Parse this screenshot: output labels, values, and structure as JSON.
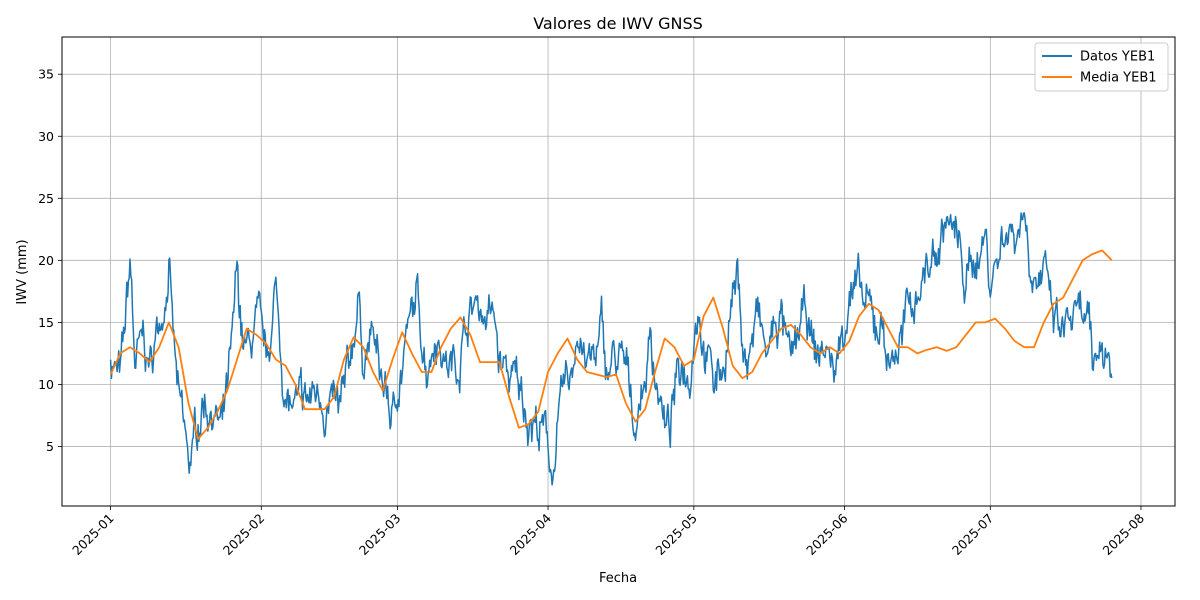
{
  "chart_data": {
    "type": "line",
    "title": "Valores de IWV GNSS",
    "xlabel": "Fecha",
    "ylabel": "IWV (mm)",
    "x_domain": [
      "2024-12-22",
      "2025-08-08"
    ],
    "ylim": [
      0.2,
      38
    ],
    "x_ticks": [
      "2025-01",
      "2025-02",
      "2025-03",
      "2025-04",
      "2025-05",
      "2025-06",
      "2025-07",
      "2025-08"
    ],
    "y_ticks": [
      5,
      10,
      15,
      20,
      25,
      30,
      35
    ],
    "grid": true,
    "legend_position": "top-right",
    "colors": {
      "data": "#1f77b4",
      "mean": "#ff7f0e"
    },
    "series": [
      {
        "name": "Datos YEB1",
        "x_start": "2025-01-01",
        "x_end": "2025-07-26",
        "anchors": [
          [
            "2025-01-01",
            12.5
          ],
          [
            "2025-01-03",
            10.0
          ],
          [
            "2025-01-04",
            14.0
          ],
          [
            "2025-01-05",
            19.5
          ],
          [
            "2025-01-06",
            11.5
          ],
          [
            "2025-01-08",
            13.0
          ],
          [
            "2025-01-09",
            11.0
          ],
          [
            "2025-01-11",
            15.0
          ],
          [
            "2025-01-12",
            17.5
          ],
          [
            "2025-01-13",
            20.0
          ],
          [
            "2025-01-14",
            13.0
          ],
          [
            "2025-01-15",
            8.0
          ],
          [
            "2025-01-16",
            6.0
          ],
          [
            "2025-01-17",
            3.0
          ],
          [
            "2025-01-18",
            4.5
          ],
          [
            "2025-01-20",
            9.0
          ],
          [
            "2025-01-22",
            8.5
          ],
          [
            "2025-01-24",
            6.0
          ],
          [
            "2025-01-26",
            12.0
          ],
          [
            "2025-01-27",
            18.0
          ],
          [
            "2025-01-28",
            14.0
          ],
          [
            "2025-01-29",
            12.0
          ],
          [
            "2025-01-31",
            14.5
          ],
          [
            "2025-02-02",
            11.0
          ],
          [
            "2025-02-04",
            17.5
          ],
          [
            "2025-02-05",
            13.0
          ],
          [
            "2025-02-06",
            9.0
          ],
          [
            "2025-02-07",
            8.0
          ],
          [
            "2025-02-09",
            7.5
          ],
          [
            "2025-02-11",
            8.5
          ],
          [
            "2025-02-13",
            9.5
          ],
          [
            "2025-02-15",
            8.5
          ],
          [
            "2025-02-17",
            7.0
          ],
          [
            "2025-02-19",
            10.0
          ],
          [
            "2025-02-20",
            14.0
          ],
          [
            "2025-02-21",
            17.0
          ],
          [
            "2025-02-22",
            12.5
          ],
          [
            "2025-02-24",
            14.0
          ],
          [
            "2025-02-25",
            11.0
          ],
          [
            "2025-02-27",
            9.0
          ],
          [
            "2025-02-28",
            6.5
          ],
          [
            "2025-03-01",
            10.0
          ],
          [
            "2025-03-03",
            14.0
          ],
          [
            "2025-03-04",
            15.0
          ],
          [
            "2025-03-05",
            16.5
          ],
          [
            "2025-03-07",
            12.0
          ],
          [
            "2025-03-09",
            15.0
          ],
          [
            "2025-03-11",
            12.0
          ],
          [
            "2025-03-13",
            11.5
          ],
          [
            "2025-03-15",
            15.0
          ],
          [
            "2025-03-17",
            16.5
          ],
          [
            "2025-03-19",
            16.0
          ],
          [
            "2025-03-21",
            15.0
          ],
          [
            "2025-03-22",
            11.5
          ],
          [
            "2025-03-25",
            10.0
          ],
          [
            "2025-03-28",
            8.0
          ],
          [
            "2025-03-31",
            6.0
          ],
          [
            "2025-04-01",
            5.0
          ],
          [
            "2025-04-02",
            3.0
          ],
          [
            "2025-04-03",
            6.5
          ],
          [
            "2025-04-05",
            9.5
          ],
          [
            "2025-04-06",
            10.5
          ],
          [
            "2025-04-07",
            15.0
          ],
          [
            "2025-04-08",
            14.0
          ],
          [
            "2025-04-09",
            11.5
          ],
          [
            "2025-04-11",
            12.0
          ],
          [
            "2025-04-12",
            14.0
          ],
          [
            "2025-04-13",
            11.0
          ],
          [
            "2025-04-15",
            12.0
          ],
          [
            "2025-04-17",
            10.5
          ],
          [
            "2025-04-18",
            9.0
          ],
          [
            "2025-04-19",
            7.0
          ],
          [
            "2025-04-21",
            11.0
          ],
          [
            "2025-04-22",
            13.5
          ],
          [
            "2025-04-24",
            9.5
          ],
          [
            "2025-04-25",
            6.5
          ],
          [
            "2025-04-26",
            6.0
          ],
          [
            "2025-04-27",
            9.0
          ],
          [
            "2025-04-29",
            12.0
          ],
          [
            "2025-04-30",
            11.0
          ],
          [
            "2025-05-01",
            15.0
          ],
          [
            "2025-05-02",
            17.5
          ],
          [
            "2025-05-03",
            14.0
          ],
          [
            "2025-05-04",
            12.5
          ],
          [
            "2025-05-05",
            10.0
          ],
          [
            "2025-05-07",
            11.5
          ],
          [
            "2025-05-09",
            17.5
          ],
          [
            "2025-05-10",
            18.5
          ],
          [
            "2025-05-11",
            14.0
          ],
          [
            "2025-05-12",
            11.5
          ],
          [
            "2025-05-14",
            15.5
          ],
          [
            "2025-05-16",
            12.0
          ],
          [
            "2025-05-18",
            15.0
          ],
          [
            "2025-05-19",
            15.5
          ],
          [
            "2025-05-21",
            10.5
          ],
          [
            "2025-05-22",
            13.0
          ],
          [
            "2025-05-24",
            15.5
          ],
          [
            "2025-05-26",
            12.0
          ],
          [
            "2025-05-28",
            13.0
          ],
          [
            "2025-05-30",
            11.0
          ],
          [
            "2025-05-31",
            13.0
          ],
          [
            "2025-06-01",
            15.0
          ],
          [
            "2025-06-02",
            18.5
          ],
          [
            "2025-06-04",
            17.0
          ],
          [
            "2025-06-05",
            16.0
          ],
          [
            "2025-06-07",
            14.5
          ],
          [
            "2025-06-09",
            15.0
          ],
          [
            "2025-06-10",
            12.0
          ],
          [
            "2025-06-11",
            12.5
          ],
          [
            "2025-06-13",
            14.0
          ],
          [
            "2025-06-15",
            16.5
          ],
          [
            "2025-06-17",
            19.0
          ],
          [
            "2025-06-19",
            20.0
          ],
          [
            "2025-06-20",
            20.5
          ],
          [
            "2025-06-22",
            23.5
          ],
          [
            "2025-06-24",
            21.5
          ],
          [
            "2025-06-26",
            18.0
          ],
          [
            "2025-06-28",
            20.5
          ],
          [
            "2025-06-30",
            22.0
          ],
          [
            "2025-07-01",
            18.5
          ],
          [
            "2025-07-03",
            21.0
          ],
          [
            "2025-07-04",
            23.0
          ],
          [
            "2025-07-06",
            22.5
          ],
          [
            "2025-07-08",
            24.5
          ],
          [
            "2025-07-09",
            21.0
          ],
          [
            "2025-07-11",
            19.0
          ],
          [
            "2025-07-12",
            18.5
          ],
          [
            "2025-07-14",
            15.0
          ],
          [
            "2025-07-16",
            13.5
          ],
          [
            "2025-07-17",
            15.5
          ],
          [
            "2025-07-19",
            14.5
          ],
          [
            "2025-07-21",
            15.0
          ],
          [
            "2025-07-22",
            10.0
          ],
          [
            "2025-07-24",
            14.0
          ],
          [
            "2025-07-26",
            11.0
          ]
        ]
      },
      {
        "name": "Media YEB1",
        "points": [
          [
            "2025-01-01",
            10.8
          ],
          [
            "2025-01-03",
            12.5
          ],
          [
            "2025-01-05",
            13.0
          ],
          [
            "2025-01-07",
            12.5
          ],
          [
            "2025-01-09",
            11.8
          ],
          [
            "2025-01-11",
            13.0
          ],
          [
            "2025-01-13",
            15.0
          ],
          [
            "2025-01-15",
            13.0
          ],
          [
            "2025-01-17",
            8.5
          ],
          [
            "2025-01-19",
            5.6
          ],
          [
            "2025-01-21",
            6.5
          ],
          [
            "2025-01-23",
            7.8
          ],
          [
            "2025-01-25",
            9.5
          ],
          [
            "2025-01-27",
            12.0
          ],
          [
            "2025-01-29",
            14.5
          ],
          [
            "2025-01-31",
            14.0
          ],
          [
            "2025-02-02",
            13.3
          ],
          [
            "2025-02-04",
            12.0
          ],
          [
            "2025-02-06",
            11.5
          ],
          [
            "2025-02-08",
            10.0
          ],
          [
            "2025-02-10",
            8.0
          ],
          [
            "2025-02-12",
            8.0
          ],
          [
            "2025-02-14",
            8.0
          ],
          [
            "2025-02-16",
            9.0
          ],
          [
            "2025-02-18",
            12.0
          ],
          [
            "2025-02-20",
            13.8
          ],
          [
            "2025-02-22",
            13.0
          ],
          [
            "2025-02-24",
            11.0
          ],
          [
            "2025-02-26",
            9.5
          ],
          [
            "2025-02-28",
            12.0
          ],
          [
            "2025-03-02",
            14.2
          ],
          [
            "2025-03-04",
            12.5
          ],
          [
            "2025-03-06",
            11.0
          ],
          [
            "2025-03-08",
            11.0
          ],
          [
            "2025-03-10",
            13.0
          ],
          [
            "2025-03-12",
            14.5
          ],
          [
            "2025-03-14",
            15.4
          ],
          [
            "2025-03-16",
            14.0
          ],
          [
            "2025-03-18",
            11.8
          ],
          [
            "2025-03-20",
            11.8
          ],
          [
            "2025-03-22",
            11.8
          ],
          [
            "2025-03-24",
            9.0
          ],
          [
            "2025-03-26",
            6.5
          ],
          [
            "2025-03-28",
            6.8
          ],
          [
            "2025-03-30",
            7.8
          ],
          [
            "2025-04-01",
            11.0
          ],
          [
            "2025-04-03",
            12.5
          ],
          [
            "2025-04-05",
            13.7
          ],
          [
            "2025-04-07",
            12.0
          ],
          [
            "2025-04-09",
            11.0
          ],
          [
            "2025-04-11",
            10.8
          ],
          [
            "2025-04-13",
            10.6
          ],
          [
            "2025-04-15",
            10.8
          ],
          [
            "2025-04-17",
            8.5
          ],
          [
            "2025-04-19",
            7.0
          ],
          [
            "2025-04-21",
            8.0
          ],
          [
            "2025-04-23",
            11.0
          ],
          [
            "2025-04-25",
            13.7
          ],
          [
            "2025-04-27",
            13.0
          ],
          [
            "2025-04-29",
            11.5
          ],
          [
            "2025-05-01",
            12.0
          ],
          [
            "2025-05-03",
            15.5
          ],
          [
            "2025-05-05",
            17.0
          ],
          [
            "2025-05-07",
            14.5
          ],
          [
            "2025-05-09",
            11.5
          ],
          [
            "2025-05-11",
            10.5
          ],
          [
            "2025-05-13",
            11.0
          ],
          [
            "2025-05-15",
            12.5
          ],
          [
            "2025-05-17",
            13.5
          ],
          [
            "2025-05-19",
            14.5
          ],
          [
            "2025-05-21",
            14.8
          ],
          [
            "2025-05-23",
            14.0
          ],
          [
            "2025-05-25",
            13.0
          ],
          [
            "2025-05-27",
            12.5
          ],
          [
            "2025-05-29",
            13.0
          ],
          [
            "2025-05-31",
            12.5
          ],
          [
            "2025-06-02",
            13.5
          ],
          [
            "2025-06-04",
            15.5
          ],
          [
            "2025-06-06",
            16.5
          ],
          [
            "2025-06-08",
            16.0
          ],
          [
            "2025-06-10",
            14.5
          ],
          [
            "2025-06-12",
            13.0
          ],
          [
            "2025-06-14",
            13.0
          ],
          [
            "2025-06-16",
            12.5
          ],
          [
            "2025-06-18",
            12.8
          ],
          [
            "2025-06-20",
            13.0
          ],
          [
            "2025-06-22",
            12.7
          ],
          [
            "2025-06-24",
            13.0
          ],
          [
            "2025-06-26",
            14.0
          ],
          [
            "2025-06-28",
            15.0
          ],
          [
            "2025-06-30",
            15.0
          ],
          [
            "2025-07-02",
            15.3
          ],
          [
            "2025-07-04",
            14.5
          ],
          [
            "2025-07-06",
            13.5
          ],
          [
            "2025-07-08",
            13.0
          ],
          [
            "2025-07-10",
            13.0
          ],
          [
            "2025-07-12",
            15.0
          ],
          [
            "2025-07-14",
            16.5
          ],
          [
            "2025-07-16",
            17.0
          ],
          [
            "2025-07-18",
            18.5
          ],
          [
            "2025-07-20",
            20.0
          ],
          [
            "2025-07-22",
            20.5
          ],
          [
            "2025-07-24",
            20.8
          ],
          [
            "2025-07-26",
            20.0
          ]
        ]
      }
    ]
  }
}
